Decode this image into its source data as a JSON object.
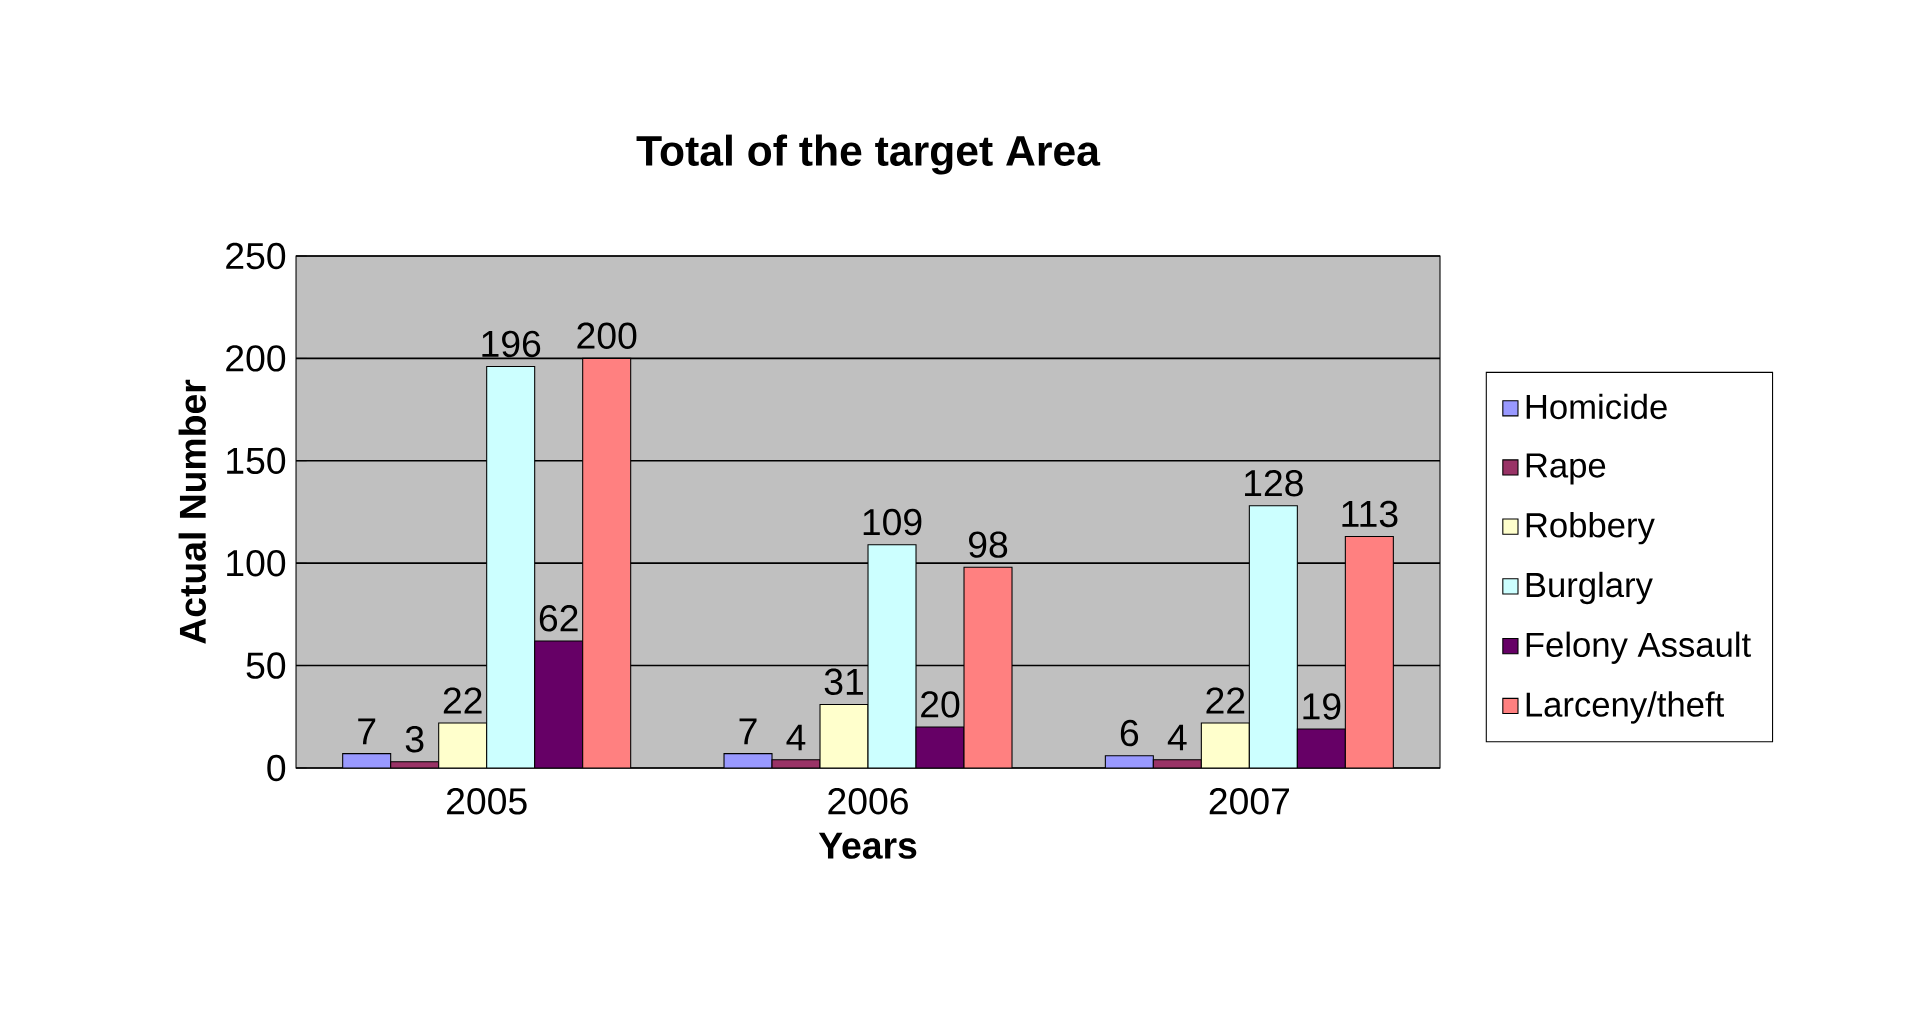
{
  "chart_data": {
    "type": "bar",
    "title": "Total of the target  Area",
    "xlabel": "Years",
    "ylabel": "Actual Number",
    "categories": [
      "2005",
      "2006",
      "2007"
    ],
    "series": [
      {
        "name": "Homicide",
        "color": "#9999ff",
        "values": [
          7,
          7,
          6
        ]
      },
      {
        "name": "Rape",
        "color": "#993366",
        "values": [
          3,
          4,
          4
        ]
      },
      {
        "name": "Robbery",
        "color": "#ffffcc",
        "values": [
          22,
          31,
          22
        ]
      },
      {
        "name": "Burglary",
        "color": "#ccffff",
        "values": [
          196,
          109,
          128
        ]
      },
      {
        "name": "Felony Assault",
        "color": "#660066",
        "values": [
          62,
          20,
          19
        ]
      },
      {
        "name": "Larceny/theft",
        "color": "#ff8080",
        "values": [
          200,
          98,
          113
        ]
      }
    ],
    "ylim": [
      0,
      250
    ],
    "yticks": [
      0,
      50,
      100,
      150,
      200,
      250
    ],
    "grid": "y",
    "legend": "right",
    "data_labels": true
  }
}
